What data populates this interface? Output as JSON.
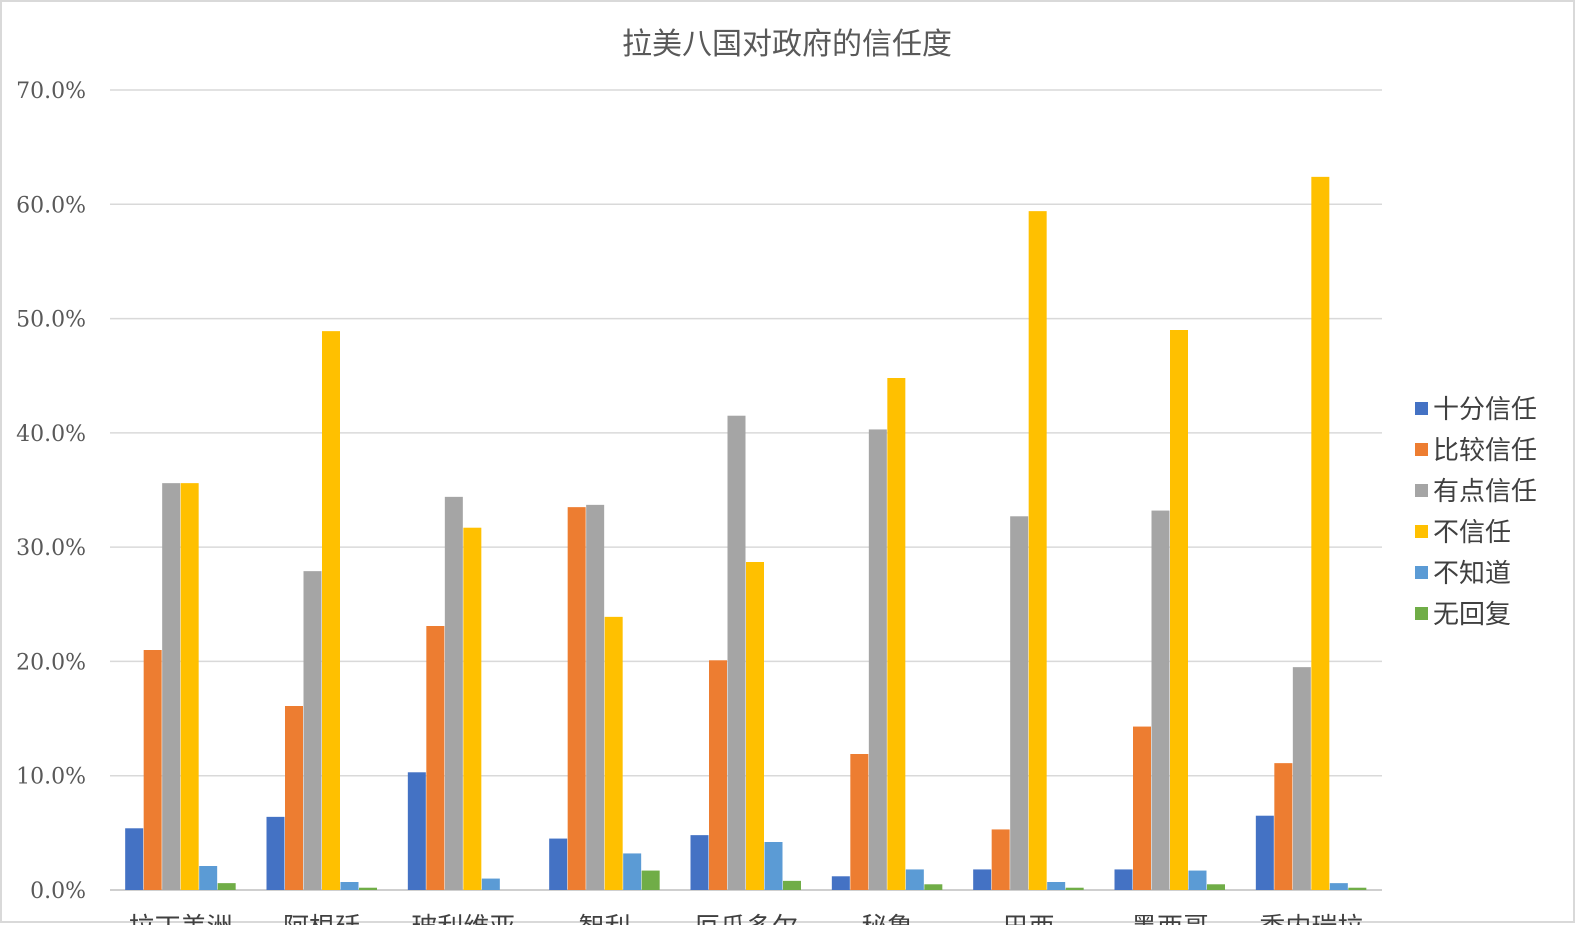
{
  "chart_data": {
    "type": "bar",
    "title": "拉美八国对政府的信任度",
    "xlabel": "",
    "ylabel": "",
    "ylim": [
      0,
      70
    ],
    "yticks": [
      "0.0%",
      "10.0%",
      "20.0%",
      "30.0%",
      "40.0%",
      "50.0%",
      "60.0%",
      "70.0%"
    ],
    "grid": true,
    "legend_position": "right",
    "categories": [
      "拉丁美洲",
      "阿根廷",
      "玻利维亚",
      "智利",
      "厄瓜多尔",
      "秘鲁",
      "巴西",
      "墨西哥",
      "委内瑞拉"
    ],
    "series": [
      {
        "name": "十分信任",
        "color": "#4472c4",
        "values": [
          5.4,
          6.4,
          10.3,
          4.5,
          4.8,
          1.2,
          1.8,
          1.8,
          6.5
        ]
      },
      {
        "name": "比较信任",
        "color": "#ed7d31",
        "values": [
          21.0,
          16.1,
          23.1,
          33.5,
          20.1,
          11.9,
          5.3,
          14.3,
          11.1
        ]
      },
      {
        "name": "有点信任",
        "color": "#a5a5a5",
        "values": [
          35.6,
          27.9,
          34.4,
          33.7,
          41.5,
          40.3,
          32.7,
          33.2,
          19.5
        ]
      },
      {
        "name": "不信任",
        "color": "#ffc000",
        "values": [
          35.6,
          48.9,
          31.7,
          23.9,
          28.7,
          44.8,
          59.4,
          49.0,
          62.4
        ]
      },
      {
        "name": "不知道",
        "color": "#5b9bd5",
        "values": [
          2.1,
          0.7,
          1.0,
          3.2,
          4.2,
          1.8,
          0.7,
          1.7,
          0.6
        ]
      },
      {
        "name": "无回复",
        "color": "#70ad47",
        "values": [
          0.6,
          0.2,
          0.0,
          1.7,
          0.8,
          0.5,
          0.2,
          0.5,
          0.2
        ]
      }
    ]
  }
}
